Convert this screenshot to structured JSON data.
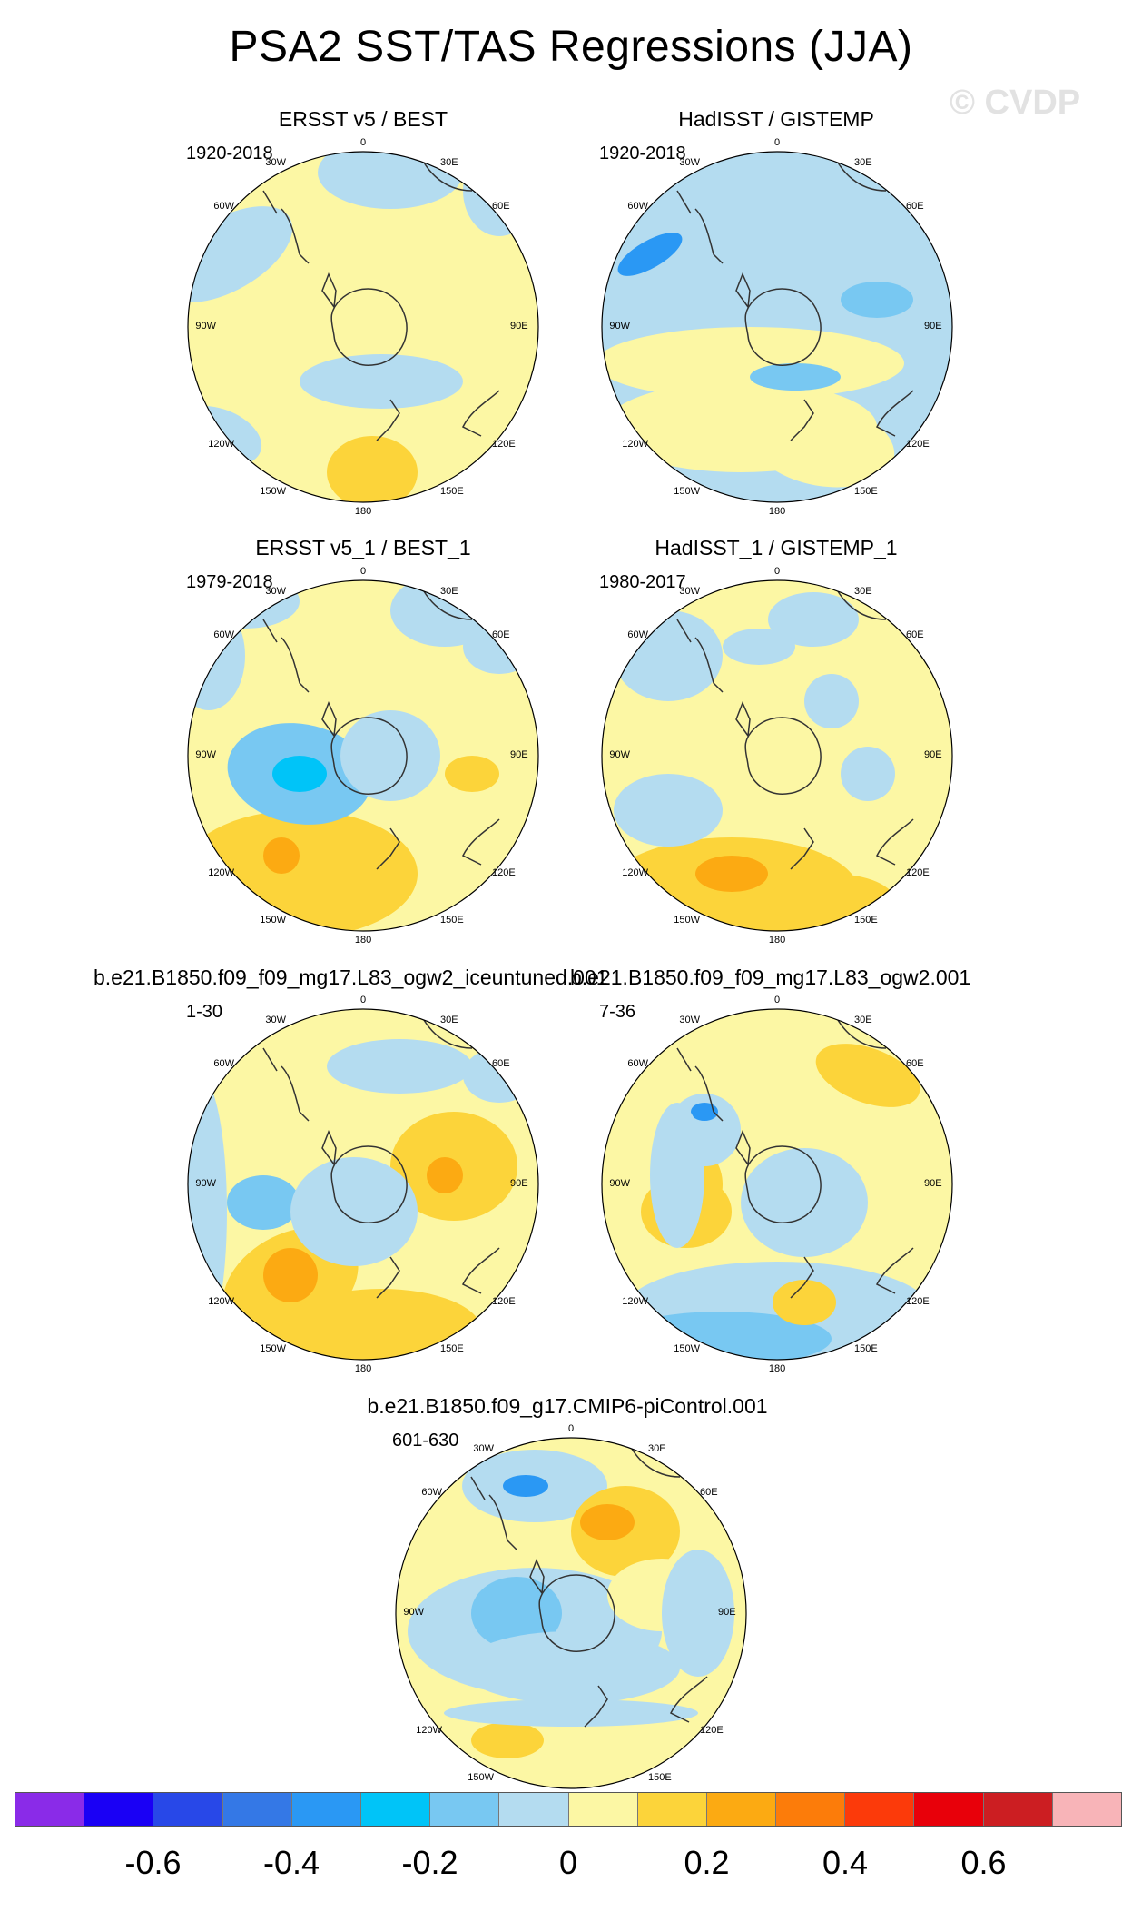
{
  "title": "PSA2 SST/TAS Regressions (JJA)",
  "watermark": "© CVDP",
  "lon_labels": [
    "0",
    "30E",
    "60E",
    "90E",
    "120E",
    "150E",
    "180",
    "150W",
    "120W",
    "90W",
    "60W",
    "30W"
  ],
  "panels": [
    {
      "title": "ERSST v5 / BEST",
      "years": "1920-2018"
    },
    {
      "title": "HadISST / GISTEMP",
      "years": "1920-2018"
    },
    {
      "title": "ERSST v5_1 / BEST_1",
      "years": "1979-2018"
    },
    {
      "title": "HadISST_1 / GISTEMP_1",
      "years": "1980-2017"
    },
    {
      "title": "b.e21.B1850.f09_f09_mg17.L83_ogw2_iceuntuned.001",
      "years": "1-30"
    },
    {
      "title": "b.e21.B1850.f09_f09_mg17.L83_ogw2.001",
      "years": "7-36"
    },
    {
      "title": "b.e21.B1850.f09_g17.CMIP6-piControl.001",
      "years": "601-630"
    }
  ],
  "colorbar": {
    "colors": [
      "#8a2be8",
      "#1a00f5",
      "#2848e8",
      "#3478e6",
      "#2a98f4",
      "#00c4f8",
      "#78c8f2",
      "#b4dcf0",
      "#fcf7a4",
      "#fcd43a",
      "#fcaa12",
      "#fc7c0a",
      "#fc3a0a",
      "#e8000a",
      "#cc1e22",
      "#f8b4b8"
    ],
    "labels": [
      "-0.6",
      "-0.4",
      "-0.2",
      "0",
      "0.2",
      "0.4",
      "0.6"
    ],
    "label_values": [
      -0.6,
      -0.4,
      -0.2,
      0,
      0.2,
      0.4,
      0.6
    ]
  },
  "chart_data": {
    "type": "heatmap",
    "projection": "south polar stereographic",
    "title": "PSA2 SST/TAS Regressions (JJA)",
    "levels": [
      -0.7,
      -0.6,
      -0.5,
      -0.4,
      -0.3,
      -0.2,
      -0.1,
      0,
      0.1,
      0.2,
      0.3,
      0.4,
      0.5,
      0.6,
      0.7
    ],
    "panels": [
      {
        "name": "ERSST v5 / BEST",
        "period": "1920-2018",
        "dominant_range": [
          -0.1,
          0.3
        ]
      },
      {
        "name": "HadISST / GISTEMP",
        "period": "1920-2018",
        "dominant_range": [
          -0.3,
          0.1
        ]
      },
      {
        "name": "ERSST v5_1 / BEST_1",
        "period": "1979-2018",
        "dominant_range": [
          -0.4,
          0.4
        ]
      },
      {
        "name": "HadISST_1 / GISTEMP_1",
        "period": "1980-2017",
        "dominant_range": [
          -0.2,
          0.3
        ]
      },
      {
        "name": "b.e21.B1850.f09_f09_mg17.L83_ogw2_iceuntuned.001",
        "period": "1-30",
        "dominant_range": [
          -0.3,
          0.4
        ]
      },
      {
        "name": "b.e21.B1850.f09_f09_mg17.L83_ogw2.001",
        "period": "7-36",
        "dominant_range": [
          -0.4,
          0.3
        ]
      },
      {
        "name": "b.e21.B1850.f09_g17.CMIP6-piControl.001",
        "period": "601-630",
        "dominant_range": [
          -0.4,
          0.3
        ]
      }
    ]
  }
}
